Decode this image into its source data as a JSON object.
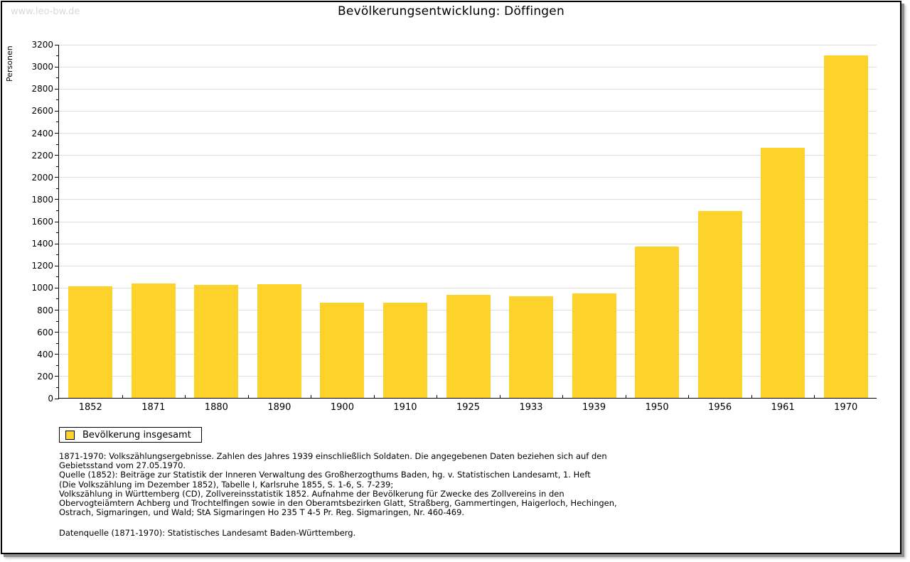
{
  "watermark": "www.leo-bw.de",
  "title": "Bevölkerungsentwicklung: Döffingen",
  "chart_data": {
    "type": "bar",
    "title": "Bevölkerungsentwicklung: Döffingen",
    "xlabel": "",
    "ylabel": "Personen",
    "categories": [
      "1852",
      "1871",
      "1880",
      "1890",
      "1900",
      "1910",
      "1925",
      "1933",
      "1939",
      "1950",
      "1956",
      "1961",
      "1970"
    ],
    "series": [
      {
        "name": "Bevölkerung insgesamt",
        "values": [
          1010,
          1035,
          1020,
          1025,
          860,
          860,
          930,
          920,
          945,
          1370,
          1690,
          2260,
          3095
        ]
      }
    ],
    "ylim": [
      0,
      3200
    ],
    "ytick_step": 200,
    "yminor_step": 100,
    "grid": true,
    "bar_color": "#fdd32b",
    "gridline_color": "#dedede",
    "legend_position": "bottom-left"
  },
  "legend": {
    "items": [
      {
        "label": "Bevölkerung insgesamt",
        "color": "#fdd32b"
      }
    ]
  },
  "footnotes": {
    "lines": [
      "1871-1970: Volkszählungsergebnisse. Zahlen des Jahres 1939 einschließlich Soldaten. Die angegebenen Daten beziehen sich auf den",
      "Gebietsstand vom 27.05.1970.",
      "Quelle (1852): Beiträge zur Statistik der Inneren Verwaltung des Großherzogthums Baden, hg. v. Statistischen Landesamt, 1. Heft",
      "(Die Volkszählung im Dezember 1852), Tabelle I, Karlsruhe 1855, S. 1-6, S. 7-239;",
      "Volkszählung in Württemberg (CD), Zollvereinsstatistik 1852. Aufnahme der Bevölkerung für Zwecke des Zollvereins in den",
      "Obervogteiämtern Achberg und Trochtelfingen sowie in den Oberamtsbezirken Glatt, Straßberg, Gammertingen, Haigerloch, Hechingen,",
      "Ostrach, Sigmaringen, und Wald; StA Sigmaringen Ho 235 T 4-5 Pr. Reg. Sigmaringen, Nr. 460-469."
    ],
    "datasource": "Datenquelle (1871-1970): Statistisches Landesamt Baden-Württemberg."
  }
}
